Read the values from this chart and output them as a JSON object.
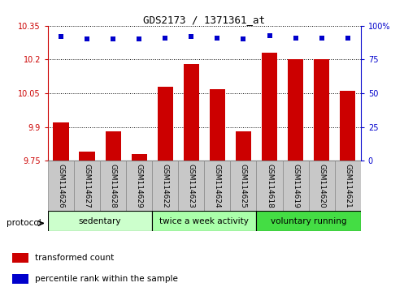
{
  "title": "GDS2173 / 1371361_at",
  "samples": [
    "GSM114626",
    "GSM114627",
    "GSM114628",
    "GSM114629",
    "GSM114622",
    "GSM114623",
    "GSM114624",
    "GSM114625",
    "GSM114618",
    "GSM114619",
    "GSM114620",
    "GSM114621"
  ],
  "transformed_count": [
    9.92,
    9.79,
    9.88,
    9.78,
    10.08,
    10.18,
    10.07,
    9.88,
    10.23,
    10.2,
    10.2,
    10.06
  ],
  "percentile_values": [
    92,
    90,
    90,
    90,
    91,
    92,
    91,
    90,
    93,
    91,
    91,
    91
  ],
  "ylim_left": [
    9.75,
    10.35
  ],
  "ylim_right": [
    0,
    100
  ],
  "yticks_left": [
    9.75,
    9.9,
    10.05,
    10.2,
    10.35
  ],
  "yticks_right": [
    0,
    25,
    50,
    75,
    100
  ],
  "ytick_labels_left": [
    "9.75",
    "9.9",
    "10.05",
    "10.2",
    "10.35"
  ],
  "ytick_labels_right": [
    "0",
    "25",
    "50",
    "75",
    "100%"
  ],
  "bar_color": "#cc0000",
  "dot_color": "#0000cc",
  "groups": [
    {
      "label": "sedentary",
      "start": 0,
      "end": 4,
      "color": "#ccffcc"
    },
    {
      "label": "twice a week activity",
      "start": 4,
      "end": 8,
      "color": "#aaffaa"
    },
    {
      "label": "voluntary running",
      "start": 8,
      "end": 12,
      "color": "#44dd44"
    }
  ],
  "protocol_label": "protocol",
  "legend_items": [
    {
      "color": "#cc0000",
      "label": "transformed count"
    },
    {
      "color": "#0000cc",
      "label": "percentile rank within the sample"
    }
  ],
  "bg_color": "#ffffff",
  "bar_width": 0.6,
  "dot_size": 5,
  "label_box_color": "#c8c8c8"
}
